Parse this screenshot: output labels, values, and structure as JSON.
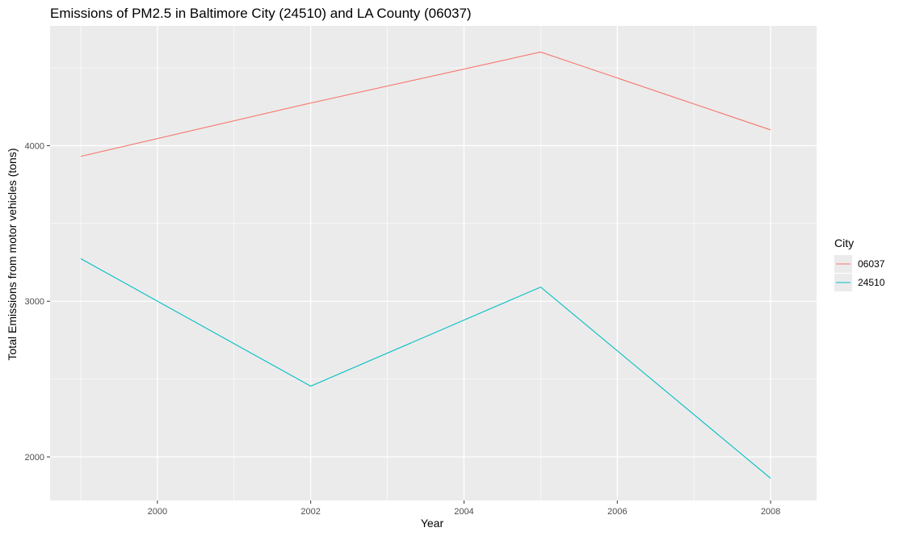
{
  "chart_data": {
    "type": "line",
    "title": "Emissions of PM2.5 in Baltimore City (24510) and LA County (06037)",
    "xlabel": "Year",
    "ylabel": "Total Emissions from motor vehicles (tons)",
    "x": [
      1999,
      2002,
      2005,
      2008
    ],
    "xlim": [
      1998.6,
      2008.6
    ],
    "ylim": [
      1720,
      4770
    ],
    "x_ticks": [
      2000,
      2002,
      2004,
      2006,
      2008
    ],
    "x_tick_labels": [
      "2000",
      "2002",
      "2004",
      "2006",
      "2008"
    ],
    "y_ticks": [
      2000,
      3000,
      4000
    ],
    "y_tick_labels": [
      "2000",
      "3000",
      "4000"
    ],
    "grid": true,
    "legend_title": "City",
    "legend_position": "right",
    "series": [
      {
        "name": "06037",
        "color": "#F8766D",
        "values": [
          3931.1,
          4274.0,
          4601.4,
          4101.3
        ]
      },
      {
        "name": "24510",
        "color": "#00BFC4",
        "values": [
          3274.0,
          2454.7,
          3091.4,
          1862.3
        ]
      }
    ],
    "panel_background": "#EBEBEB",
    "grid_color": "#FFFFFF"
  }
}
